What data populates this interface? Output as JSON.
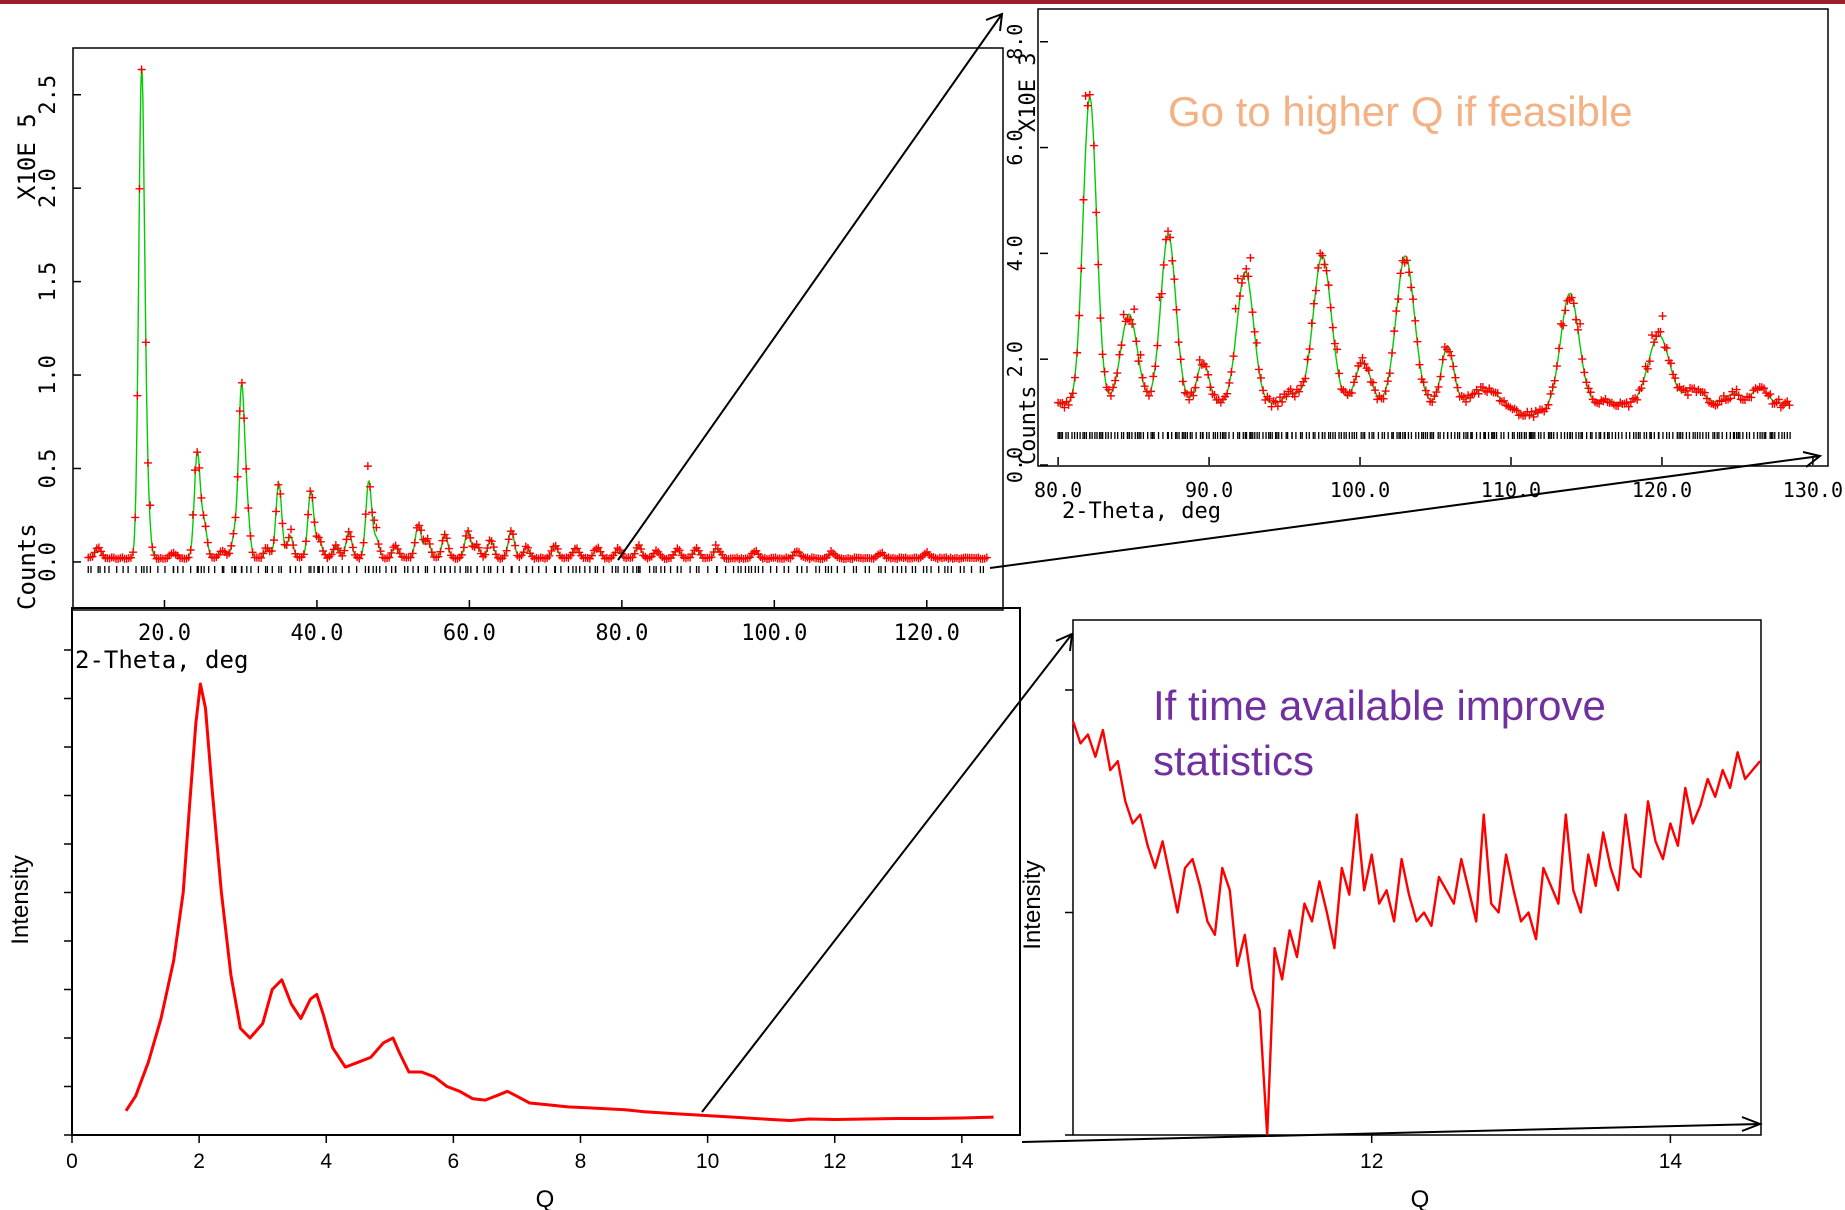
{
  "annotations": {
    "higher_q": "Go to higher Q if feasible",
    "improve_stats": "If time available improve statistics",
    "colors": {
      "higher_q": "#f4b183",
      "improve_stats": "#7030a0"
    }
  },
  "chart_data": [
    {
      "type": "scatter",
      "xlabel": "2-Theta, deg",
      "ylabel": "Counts",
      "y_multiplier_label": "X10E  5",
      "xlim": [
        8,
        130
      ],
      "ylim": [
        -0.3,
        2.75
      ],
      "x_ticks": [
        "20.0",
        "40.0",
        "60.0",
        "80.0",
        "100.0",
        "120.0"
      ],
      "x_tick_values": [
        20,
        40,
        60,
        80,
        100,
        120
      ],
      "y_ticks": [
        "0.0",
        "0.5",
        "1.0",
        "1.5",
        "2.0",
        "2.5"
      ],
      "y_tick_values": [
        0,
        0.5,
        1.0,
        1.5,
        2.0,
        2.5
      ],
      "background": 0.02,
      "x_range": [
        10,
        128
      ],
      "peak_width": 0.38,
      "peaks": [
        [
          11.3,
          0.06
        ],
        [
          17.0,
          2.57
        ],
        [
          17.7,
          0.3
        ],
        [
          21.2,
          0.03
        ],
        [
          24.3,
          0.56
        ],
        [
          25.2,
          0.18
        ],
        [
          27.6,
          0.04
        ],
        [
          29.2,
          0.12
        ],
        [
          30.1,
          0.88
        ],
        [
          30.8,
          0.25
        ],
        [
          33.5,
          0.05
        ],
        [
          35.0,
          0.4
        ],
        [
          36.5,
          0.12
        ],
        [
          39.2,
          0.36
        ],
        [
          40.3,
          0.1
        ],
        [
          42.5,
          0.07
        ],
        [
          44.2,
          0.14
        ],
        [
          46.8,
          0.41
        ],
        [
          47.8,
          0.1
        ],
        [
          50.3,
          0.07
        ],
        [
          53.3,
          0.18
        ],
        [
          54.5,
          0.1
        ],
        [
          56.8,
          0.13
        ],
        [
          59.8,
          0.15
        ],
        [
          61.0,
          0.07
        ],
        [
          62.8,
          0.1
        ],
        [
          65.5,
          0.15
        ],
        [
          67.5,
          0.06
        ],
        [
          71.2,
          0.07
        ],
        [
          74.0,
          0.06
        ],
        [
          76.8,
          0.06
        ],
        [
          79.5,
          0.05
        ],
        [
          82.2,
          0.07
        ],
        [
          84.5,
          0.04
        ],
        [
          87.3,
          0.05
        ],
        [
          89.8,
          0.05
        ],
        [
          92.5,
          0.05
        ],
        [
          97.5,
          0.04
        ],
        [
          103.0,
          0.04
        ],
        [
          107.5,
          0.03
        ],
        [
          114.0,
          0.03
        ],
        [
          120.0,
          0.03
        ]
      ],
      "series": [
        {
          "name": "",
          "role": "observed",
          "color": "#ff0000",
          "marker": "+"
        },
        {
          "name": "",
          "role": "calculated",
          "color": "#00cc00"
        },
        {
          "name": "",
          "role": "reflection ticks",
          "color": "#000000"
        }
      ],
      "grid": false
    },
    {
      "type": "scatter",
      "xlabel": "2-Theta, deg",
      "ylabel": "Counts",
      "y_multiplier_label": "X10E  3",
      "xlim": [
        78.8,
        131
      ],
      "ylim": [
        0,
        8.6
      ],
      "x_ticks": [
        "80.0",
        "90.0",
        "100.0",
        "110.0",
        "120.0",
        "130.0"
      ],
      "x_tick_values": [
        80,
        90,
        100,
        110,
        120,
        130
      ],
      "y_ticks": [
        "0.0",
        "2.0",
        "4.0",
        "6.0",
        "8.0"
      ],
      "y_tick_values": [
        0,
        2,
        4,
        6,
        8
      ],
      "background": 1.15,
      "x_range": [
        80,
        128.5
      ],
      "peaks": [
        [
          82.1,
          5.8,
          0.45
        ],
        [
          84.7,
          1.7,
          0.55
        ],
        [
          87.3,
          3.2,
          0.5
        ],
        [
          89.6,
          0.8,
          0.4
        ],
        [
          92.4,
          2.5,
          0.55
        ],
        [
          95.5,
          0.2,
          0.5
        ],
        [
          97.5,
          2.8,
          0.6
        ],
        [
          100.2,
          0.8,
          0.5
        ],
        [
          103.0,
          2.8,
          0.6
        ],
        [
          105.8,
          1.1,
          0.4
        ],
        [
          108.3,
          0.3,
          0.8
        ],
        [
          111.3,
          -0.2,
          1.0
        ],
        [
          113.9,
          2.1,
          0.6
        ],
        [
          116.2,
          0.1,
          0.4
        ],
        [
          119.8,
          1.3,
          0.7
        ],
        [
          122.2,
          0.3,
          0.6
        ],
        [
          124.8,
          0.2,
          0.6
        ],
        [
          126.5,
          0.3,
          0.5
        ]
      ],
      "series": [
        {
          "name": "",
          "role": "observed",
          "color": "#ff0000",
          "marker": "+"
        },
        {
          "name": "",
          "role": "calculated",
          "color": "#00cc00"
        },
        {
          "name": "",
          "role": "reflection ticks",
          "color": "#000000"
        }
      ],
      "grid": false
    },
    {
      "type": "line",
      "xlabel": "Q",
      "ylabel": "Intensity",
      "xlim": [
        0,
        14.6
      ],
      "ylim": [
        0,
        1
      ],
      "x_ticks": [
        "0",
        "2",
        "4",
        "6",
        "8",
        "10",
        "12",
        "14"
      ],
      "x_tick_values": [
        0,
        2,
        4,
        6,
        8,
        10,
        12,
        14
      ],
      "series": [
        {
          "name": "",
          "color": "#ff0000",
          "x": [
            0.85,
            1.0,
            1.2,
            1.4,
            1.6,
            1.75,
            1.85,
            1.95,
            2.02,
            2.1,
            2.2,
            2.35,
            2.5,
            2.65,
            2.8,
            3.0,
            3.15,
            3.3,
            3.45,
            3.6,
            3.75,
            3.85,
            3.95,
            4.1,
            4.3,
            4.5,
            4.7,
            4.9,
            5.05,
            5.15,
            5.3,
            5.5,
            5.7,
            5.9,
            6.1,
            6.3,
            6.5,
            6.7,
            6.85,
            7.0,
            7.2,
            7.5,
            7.8,
            8.1,
            8.4,
            8.7,
            9.0,
            9.5,
            10.0,
            10.5,
            11.0,
            11.3,
            11.6,
            12.0,
            12.5,
            13.0,
            13.5,
            14.0,
            14.5
          ],
          "y": [
            0.05,
            0.08,
            0.15,
            0.24,
            0.36,
            0.5,
            0.68,
            0.85,
            0.93,
            0.88,
            0.72,
            0.5,
            0.33,
            0.22,
            0.2,
            0.23,
            0.3,
            0.32,
            0.27,
            0.24,
            0.28,
            0.29,
            0.25,
            0.18,
            0.14,
            0.15,
            0.16,
            0.19,
            0.2,
            0.17,
            0.13,
            0.13,
            0.12,
            0.1,
            0.09,
            0.075,
            0.072,
            0.082,
            0.09,
            0.08,
            0.066,
            0.062,
            0.058,
            0.056,
            0.054,
            0.052,
            0.048,
            0.044,
            0.04,
            0.036,
            0.032,
            0.03,
            0.033,
            0.032,
            0.033,
            0.034,
            0.034,
            0.035,
            0.037
          ]
        }
      ],
      "grid": false
    },
    {
      "type": "line",
      "xlabel": "Q",
      "ylabel": "Intensity",
      "xlim": [
        10.0,
        14.6
      ],
      "ylim": [
        0,
        1
      ],
      "x_ticks": [
        "12",
        "14"
      ],
      "x_tick_values": [
        12,
        14
      ],
      "series": [
        {
          "name": "",
          "color": "#ff0000",
          "x": [
            10.0,
            10.05,
            10.1,
            10.15,
            10.2,
            10.25,
            10.3,
            10.35,
            10.4,
            10.45,
            10.5,
            10.55,
            10.6,
            10.65,
            10.7,
            10.75,
            10.8,
            10.85,
            10.9,
            10.95,
            11.0,
            11.05,
            11.1,
            11.15,
            11.2,
            11.25,
            11.3,
            11.35,
            11.4,
            11.45,
            11.5,
            11.55,
            11.6,
            11.65,
            11.7,
            11.75,
            11.8,
            11.85,
            11.9,
            11.95,
            12.0,
            12.05,
            12.1,
            12.15,
            12.2,
            12.25,
            12.3,
            12.35,
            12.4,
            12.45,
            12.5,
            12.55,
            12.6,
            12.65,
            12.7,
            12.75,
            12.8,
            12.85,
            12.9,
            12.95,
            13.0,
            13.05,
            13.1,
            13.15,
            13.2,
            13.25,
            13.3,
            13.35,
            13.4,
            13.45,
            13.5,
            13.55,
            13.6,
            13.65,
            13.7,
            13.75,
            13.8,
            13.85,
            13.9,
            13.95,
            14.0,
            14.05,
            14.1,
            14.15,
            14.2,
            14.25,
            14.3,
            14.35,
            14.4,
            14.45,
            14.5,
            14.55,
            14.6
          ],
          "y": [
            0.93,
            0.88,
            0.9,
            0.85,
            0.91,
            0.82,
            0.84,
            0.75,
            0.7,
            0.72,
            0.65,
            0.6,
            0.66,
            0.58,
            0.5,
            0.6,
            0.62,
            0.56,
            0.48,
            0.45,
            0.6,
            0.55,
            0.38,
            0.45,
            0.33,
            0.28,
            0.0,
            0.42,
            0.35,
            0.46,
            0.4,
            0.52,
            0.48,
            0.57,
            0.5,
            0.42,
            0.6,
            0.54,
            0.72,
            0.55,
            0.63,
            0.52,
            0.55,
            0.48,
            0.62,
            0.54,
            0.48,
            0.5,
            0.47,
            0.58,
            0.55,
            0.52,
            0.62,
            0.55,
            0.48,
            0.72,
            0.52,
            0.5,
            0.63,
            0.55,
            0.48,
            0.5,
            0.44,
            0.6,
            0.56,
            0.52,
            0.72,
            0.55,
            0.5,
            0.63,
            0.56,
            0.68,
            0.6,
            0.55,
            0.72,
            0.6,
            0.58,
            0.75,
            0.66,
            0.62,
            0.7,
            0.65,
            0.78,
            0.7,
            0.74,
            0.8,
            0.76,
            0.82,
            0.78,
            0.86,
            0.8,
            0.82,
            0.84
          ]
        }
      ],
      "grid": false
    }
  ]
}
